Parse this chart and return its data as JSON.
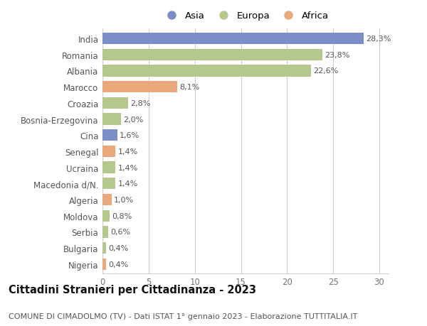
{
  "countries": [
    "India",
    "Romania",
    "Albania",
    "Marocco",
    "Croazia",
    "Bosnia-Erzegovina",
    "Cina",
    "Senegal",
    "Ucraina",
    "Macedonia d/N.",
    "Algeria",
    "Moldova",
    "Serbia",
    "Bulgaria",
    "Nigeria"
  ],
  "values": [
    28.3,
    23.8,
    22.6,
    8.1,
    2.8,
    2.0,
    1.6,
    1.4,
    1.4,
    1.4,
    1.0,
    0.8,
    0.6,
    0.4,
    0.4
  ],
  "labels": [
    "28,3%",
    "23,8%",
    "22,6%",
    "8,1%",
    "2,8%",
    "2,0%",
    "1,6%",
    "1,4%",
    "1,4%",
    "1,4%",
    "1,0%",
    "0,8%",
    "0,6%",
    "0,4%",
    "0,4%"
  ],
  "colors": [
    "#7b8ec8",
    "#b5c98e",
    "#b5c98e",
    "#e8a87c",
    "#b5c98e",
    "#b5c98e",
    "#7b8ec8",
    "#e8a87c",
    "#b5c98e",
    "#b5c98e",
    "#e8a87c",
    "#b5c98e",
    "#b5c98e",
    "#b5c98e",
    "#e8a87c"
  ],
  "legend_labels": [
    "Asia",
    "Europa",
    "Africa"
  ],
  "legend_colors": [
    "#7b8ec8",
    "#b5c98e",
    "#e8a87c"
  ],
  "xlim": [
    0,
    31
  ],
  "xticks": [
    0,
    5,
    10,
    15,
    20,
    25,
    30
  ],
  "title": "Cittadini Stranieri per Cittadinanza - 2023",
  "subtitle": "COMUNE DI CIMADOLMO (TV) - Dati ISTAT 1° gennaio 2023 - Elaborazione TUTTITALIA.IT",
  "bg_color": "#ffffff",
  "grid_color": "#cccccc",
  "bar_height": 0.72,
  "title_fontsize": 10.5,
  "subtitle_fontsize": 8.0,
  "label_fontsize": 8.0,
  "tick_fontsize": 8.5,
  "legend_fontsize": 9.5
}
